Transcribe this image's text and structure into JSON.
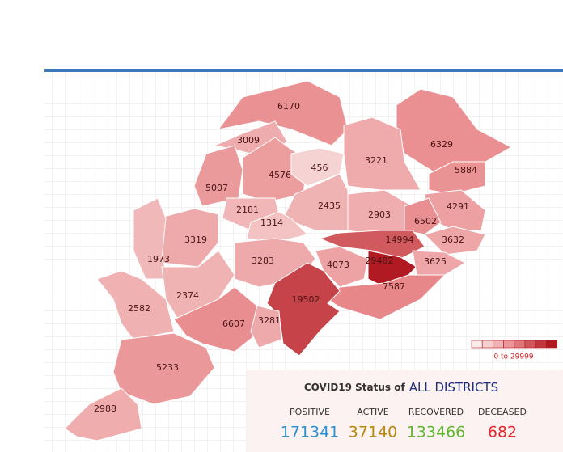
{
  "map": {
    "legend_label": "0 to 29999",
    "color_range": {
      "min": 0,
      "max": 29999
    },
    "districts": [
      {
        "value": 6170
      },
      {
        "value": 3009
      },
      {
        "value": 6329
      },
      {
        "value": 3221
      },
      {
        "value": 4576
      },
      {
        "value": 456
      },
      {
        "value": 5884
      },
      {
        "value": 5007
      },
      {
        "value": 2435
      },
      {
        "value": 4291
      },
      {
        "value": 2181
      },
      {
        "value": 2903
      },
      {
        "value": 6502
      },
      {
        "value": 1314
      },
      {
        "value": 3319
      },
      {
        "value": 14994
      },
      {
        "value": 3632
      },
      {
        "value": 1973
      },
      {
        "value": 3283
      },
      {
        "value": 4073
      },
      {
        "value": 29482
      },
      {
        "value": 3625
      },
      {
        "value": 7587
      },
      {
        "value": 2374
      },
      {
        "value": 19502
      },
      {
        "value": 2582
      },
      {
        "value": 6607
      },
      {
        "value": 3281
      },
      {
        "value": 5233
      },
      {
        "value": 2988
      }
    ]
  },
  "summary": {
    "title": "COVID19 Status of",
    "title_highlight": "ALL DISTRICTS",
    "stats": [
      {
        "label": "POSITIVE",
        "value": "171341"
      },
      {
        "label": "ACTIVE",
        "value": "37140"
      },
      {
        "label": "RECOVERED",
        "value": "133466"
      },
      {
        "label": "DECEASED",
        "value": "682"
      }
    ]
  }
}
